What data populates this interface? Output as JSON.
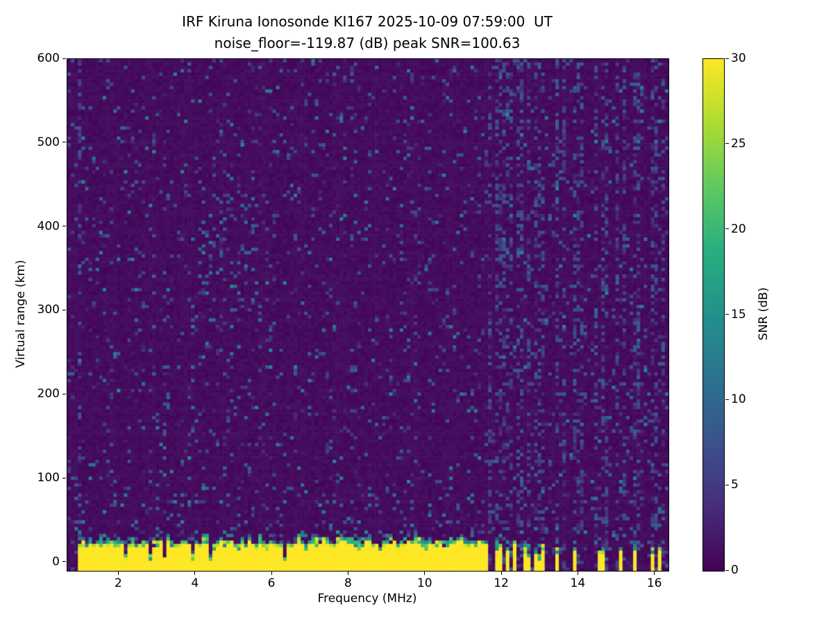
{
  "chart_data": {
    "type": "heatmap",
    "title": "IRF Kiruna Ionosonde KI167 2025-10-09 07:59:00  UT",
    "subtitle": "noise_floor=-119.87 (dB) peak SNR=100.63",
    "station": "KI167",
    "datetime_ut": "2025-10-09 07:59:00",
    "noise_floor_db": -119.87,
    "peak_snr_db": 100.63,
    "xlabel": "Frequency (MHz)",
    "ylabel": "Virtual range (km)",
    "xlim": [
      0.65,
      16.35
    ],
    "ylim": [
      -10,
      600
    ],
    "xticks": [
      2,
      4,
      6,
      8,
      10,
      12,
      14,
      16
    ],
    "yticks": [
      0,
      100,
      200,
      300,
      400,
      500,
      600
    ],
    "grid": false,
    "legend": null,
    "colorbar": {
      "label": "SNR (dB)",
      "vmin": 0,
      "vmax": 30,
      "ticks": [
        0,
        5,
        10,
        15,
        20,
        25,
        30
      ]
    },
    "colormap": {
      "name": "viridis",
      "anchors": [
        {
          "t": 0.0,
          "hex": "#440154"
        },
        {
          "t": 0.125,
          "hex": "#472d7b"
        },
        {
          "t": 0.25,
          "hex": "#3b528b"
        },
        {
          "t": 0.375,
          "hex": "#2c728e"
        },
        {
          "t": 0.5,
          "hex": "#21918c"
        },
        {
          "t": 0.625,
          "hex": "#28ae80"
        },
        {
          "t": 0.75,
          "hex": "#5ec962"
        },
        {
          "t": 0.875,
          "hex": "#addc30"
        },
        {
          "t": 1.0,
          "hex": "#fde725"
        }
      ]
    },
    "render": {
      "seed": 7,
      "cols": 170,
      "rows": 152,
      "background_snr": [
        0.3,
        1.5
      ],
      "speckle": {
        "probability": 0.06,
        "snr": [
          2,
          9
        ]
      },
      "speckle_strong": {
        "probability": 0.015,
        "snr": [
          8,
          14
        ]
      },
      "rfi_stripes": {
        "freqs_mhz": [
          1.0,
          11.7,
          11.85,
          12.0,
          12.1,
          12.25,
          12.4,
          12.55,
          12.7,
          12.85,
          13.0,
          13.1,
          13.45,
          13.6,
          13.95,
          14.1,
          14.45,
          14.6,
          14.75,
          15.05,
          15.2,
          15.45,
          15.6,
          15.9,
          16.05,
          16.2
        ],
        "half_width_mhz": 0.05,
        "probability": 0.3,
        "snr": [
          2.5,
          9
        ]
      },
      "echo_patch": {
        "freq_mhz": [
          4.1,
          5.6
        ],
        "range_km": [
          310,
          440
        ],
        "probability": 0.1,
        "snr": [
          4,
          12
        ]
      },
      "ground_clutter": {
        "snr_db": 30,
        "top_km_base": 20,
        "top_km_jitter": 10,
        "continuous_mhz": [
          0.95,
          11.65
        ],
        "intermittent_mhz": [
          11.65,
          13.15
        ],
        "intermittent_presence": 0.55,
        "isolated_mhz": [
          13.45,
          13.9,
          14.6,
          15.1,
          15.5,
          15.95,
          16.15
        ],
        "isolated_half_width_mhz": 0.06,
        "notch_mhz": [
          2.15,
          2.8,
          3.2,
          3.9,
          4.35,
          6.3
        ],
        "notch_half_width_mhz": 0.05
      }
    }
  }
}
